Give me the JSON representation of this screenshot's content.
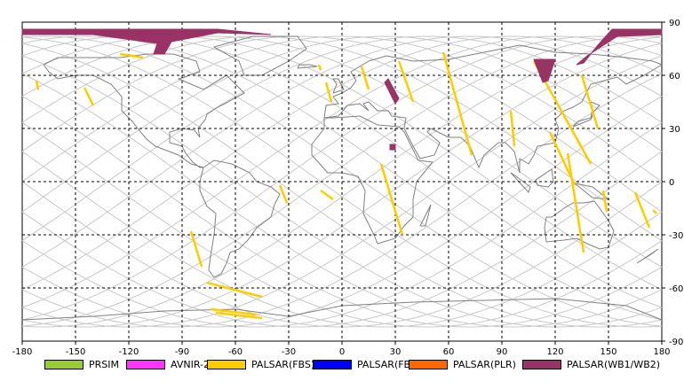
{
  "map": {
    "lon_ticks": [
      "-180",
      "-150",
      "-120",
      "-90",
      "-60",
      "-30",
      "0",
      "30",
      "60",
      "90",
      "120",
      "150",
      "180"
    ],
    "lat_ticks": [
      "90",
      "60",
      "30",
      "0",
      "-30",
      "-60",
      "-90"
    ],
    "lon_range": [
      -180,
      180
    ],
    "lat_range": [
      -90,
      90
    ]
  },
  "legend": [
    {
      "label": "PRSIM",
      "color": "#99cc33"
    },
    {
      "label": "AVNIR-2",
      "color": "#ff33ff"
    },
    {
      "label": "PALSAR(FBS)",
      "color": "#ffcc00"
    },
    {
      "label": "PALSAR(FBD)",
      "color": "#0000ff"
    },
    {
      "label": "PALSAR(PLR)",
      "color": "#ff6600"
    },
    {
      "label": "PALSAR(WB1/WB2)",
      "color": "#993366"
    }
  ],
  "colors": {
    "orbit": "#c8c8c8",
    "coastline": "#808080",
    "grid": "#000000",
    "fbs": "#ffcc00",
    "wb": "#993366"
  }
}
